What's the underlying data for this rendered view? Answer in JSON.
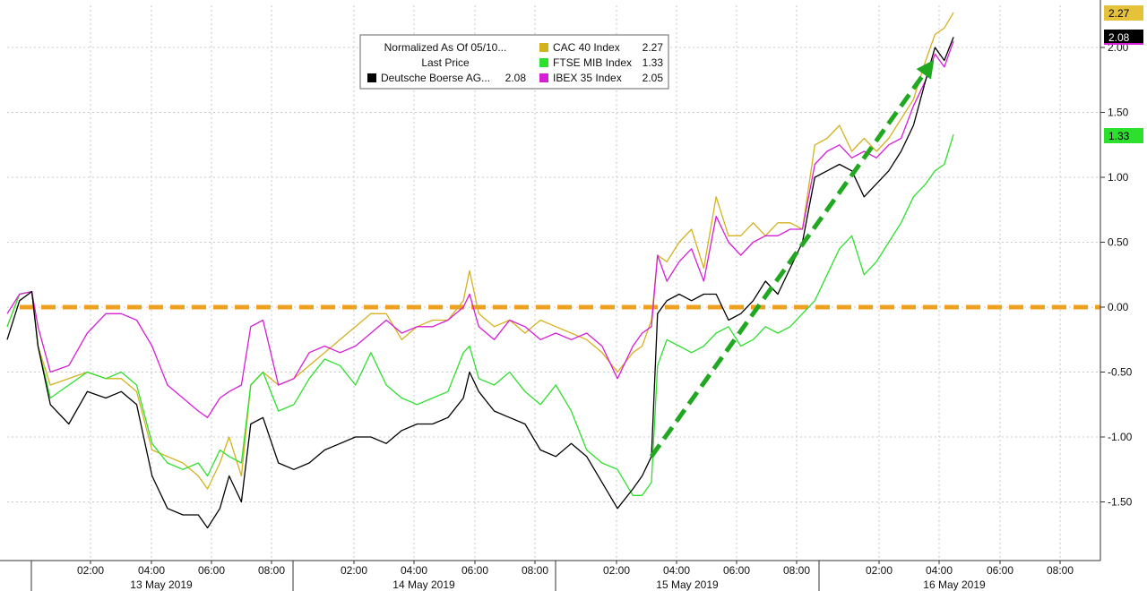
{
  "chart_data": {
    "type": "line",
    "legend": {
      "header_line1": "Normalized As Of 05/10...",
      "header_line2": "Last Price",
      "placement": "top-center"
    },
    "y_axis": {
      "ticks": [
        -1.5,
        -1.0,
        -0.5,
        0.0,
        0.5,
        1.0,
        1.5,
        2.0
      ],
      "tick_labels": [
        "-1.50",
        "-1.00",
        "-0.50",
        "0.00",
        "0.50",
        "1.00",
        "1.50",
        "2.00"
      ],
      "range": [
        -1.93,
        2.35
      ],
      "side": "right"
    },
    "x_axis": {
      "time_ticks": [
        "02:00",
        "04:00",
        "06:00",
        "08:00",
        "02:00",
        "04:00",
        "06:00",
        "08:00",
        "02:00",
        "04:00",
        "06:00",
        "08:00",
        "02:00",
        "04:00",
        "06:00",
        "08:00"
      ],
      "dates": [
        "13 May 2019",
        "14 May 2019",
        "15 May 2019",
        "16 May 2019"
      ]
    },
    "grid": true,
    "series": [
      {
        "name": "CAC 40 Index",
        "last": "2.27",
        "color": "#d4b21e",
        "points": [
          [
            0,
            -0.15
          ],
          [
            0.4,
            0.1
          ],
          [
            0.8,
            0.12
          ],
          [
            1.0,
            -0.3
          ],
          [
            1.4,
            -0.6
          ],
          [
            2.0,
            -0.55
          ],
          [
            2.6,
            -0.5
          ],
          [
            3.2,
            -0.55
          ],
          [
            3.7,
            -0.55
          ],
          [
            4.2,
            -0.65
          ],
          [
            4.7,
            -1.1
          ],
          [
            5.2,
            -1.15
          ],
          [
            5.7,
            -1.2
          ],
          [
            6.2,
            -1.3
          ],
          [
            6.5,
            -1.4
          ],
          [
            6.9,
            -1.2
          ],
          [
            7.2,
            -1.0
          ],
          [
            7.6,
            -1.3
          ],
          [
            7.9,
            -0.6
          ],
          [
            8.3,
            -0.5
          ],
          [
            8.8,
            -0.6
          ],
          [
            9.3,
            -0.55
          ],
          [
            9.8,
            -0.45
          ],
          [
            10.3,
            -0.35
          ],
          [
            10.8,
            -0.25
          ],
          [
            11.3,
            -0.15
          ],
          [
            11.8,
            -0.05
          ],
          [
            12.3,
            -0.05
          ],
          [
            12.8,
            -0.25
          ],
          [
            13.3,
            -0.15
          ],
          [
            13.8,
            -0.1
          ],
          [
            14.3,
            -0.1
          ],
          [
            14.8,
            0.05
          ],
          [
            15.0,
            0.28
          ],
          [
            15.3,
            -0.05
          ],
          [
            15.8,
            -0.15
          ],
          [
            16.3,
            -0.1
          ],
          [
            16.8,
            -0.2
          ],
          [
            17.3,
            -0.1
          ],
          [
            17.8,
            -0.15
          ],
          [
            18.3,
            -0.2
          ],
          [
            18.8,
            -0.25
          ],
          [
            19.3,
            -0.35
          ],
          [
            19.8,
            -0.5
          ],
          [
            20.3,
            -0.35
          ],
          [
            20.6,
            -0.3
          ],
          [
            20.9,
            -0.1
          ],
          [
            21.1,
            0.4
          ],
          [
            21.4,
            0.35
          ],
          [
            21.8,
            0.5
          ],
          [
            22.2,
            0.6
          ],
          [
            22.6,
            0.3
          ],
          [
            23.0,
            0.85
          ],
          [
            23.4,
            0.55
          ],
          [
            23.8,
            0.55
          ],
          [
            24.2,
            0.65
          ],
          [
            24.6,
            0.55
          ],
          [
            25.0,
            0.65
          ],
          [
            25.4,
            0.65
          ],
          [
            25.8,
            0.6
          ],
          [
            26.2,
            1.25
          ],
          [
            26.6,
            1.3
          ],
          [
            27.0,
            1.4
          ],
          [
            27.4,
            1.2
          ],
          [
            27.8,
            1.3
          ],
          [
            28.2,
            1.2
          ],
          [
            28.6,
            1.3
          ],
          [
            29.0,
            1.45
          ],
          [
            29.4,
            1.6
          ],
          [
            29.8,
            1.9
          ],
          [
            30.1,
            2.1
          ],
          [
            30.4,
            2.15
          ],
          [
            30.7,
            2.27
          ]
        ]
      },
      {
        "name": "FTSE MIB Index",
        "last": "1.33",
        "color": "#2ee02e",
        "points": [
          [
            0,
            -0.15
          ],
          [
            0.4,
            0.1
          ],
          [
            0.8,
            0.12
          ],
          [
            1.0,
            -0.3
          ],
          [
            1.4,
            -0.7
          ],
          [
            2.0,
            -0.6
          ],
          [
            2.6,
            -0.5
          ],
          [
            3.2,
            -0.55
          ],
          [
            3.7,
            -0.5
          ],
          [
            4.2,
            -0.6
          ],
          [
            4.7,
            -1.05
          ],
          [
            5.2,
            -1.2
          ],
          [
            5.7,
            -1.25
          ],
          [
            6.2,
            -1.2
          ],
          [
            6.5,
            -1.3
          ],
          [
            6.9,
            -1.1
          ],
          [
            7.2,
            -1.15
          ],
          [
            7.6,
            -1.2
          ],
          [
            7.9,
            -0.6
          ],
          [
            8.3,
            -0.5
          ],
          [
            8.8,
            -0.8
          ],
          [
            9.3,
            -0.75
          ],
          [
            9.8,
            -0.55
          ],
          [
            10.3,
            -0.4
          ],
          [
            10.8,
            -0.45
          ],
          [
            11.3,
            -0.6
          ],
          [
            11.8,
            -0.35
          ],
          [
            12.3,
            -0.6
          ],
          [
            12.8,
            -0.7
          ],
          [
            13.3,
            -0.75
          ],
          [
            13.8,
            -0.7
          ],
          [
            14.3,
            -0.65
          ],
          [
            14.8,
            -0.35
          ],
          [
            15.0,
            -0.3
          ],
          [
            15.3,
            -0.55
          ],
          [
            15.8,
            -0.6
          ],
          [
            16.3,
            -0.5
          ],
          [
            16.8,
            -0.65
          ],
          [
            17.3,
            -0.75
          ],
          [
            17.8,
            -0.6
          ],
          [
            18.3,
            -0.8
          ],
          [
            18.8,
            -1.1
          ],
          [
            19.3,
            -1.2
          ],
          [
            19.8,
            -1.25
          ],
          [
            20.3,
            -1.45
          ],
          [
            20.6,
            -1.45
          ],
          [
            20.9,
            -1.35
          ],
          [
            21.1,
            -0.45
          ],
          [
            21.4,
            -0.25
          ],
          [
            21.8,
            -0.3
          ],
          [
            22.2,
            -0.35
          ],
          [
            22.6,
            -0.3
          ],
          [
            23.0,
            -0.2
          ],
          [
            23.4,
            -0.15
          ],
          [
            23.8,
            -0.3
          ],
          [
            24.2,
            -0.25
          ],
          [
            24.6,
            -0.15
          ],
          [
            25.0,
            -0.2
          ],
          [
            25.4,
            -0.15
          ],
          [
            25.8,
            -0.05
          ],
          [
            26.2,
            0.05
          ],
          [
            26.6,
            0.25
          ],
          [
            27.0,
            0.45
          ],
          [
            27.4,
            0.55
          ],
          [
            27.8,
            0.25
          ],
          [
            28.2,
            0.35
          ],
          [
            28.6,
            0.5
          ],
          [
            29.0,
            0.65
          ],
          [
            29.4,
            0.85
          ],
          [
            29.8,
            0.95
          ],
          [
            30.1,
            1.05
          ],
          [
            30.4,
            1.1
          ],
          [
            30.7,
            1.33
          ]
        ]
      },
      {
        "name": "IBEX 35 Index",
        "last": "2.05",
        "color": "#d61ed6",
        "points": [
          [
            0,
            -0.05
          ],
          [
            0.4,
            0.1
          ],
          [
            0.8,
            0.12
          ],
          [
            1.0,
            -0.15
          ],
          [
            1.4,
            -0.5
          ],
          [
            2.0,
            -0.45
          ],
          [
            2.6,
            -0.2
          ],
          [
            3.2,
            -0.05
          ],
          [
            3.7,
            -0.05
          ],
          [
            4.2,
            -0.1
          ],
          [
            4.7,
            -0.3
          ],
          [
            5.2,
            -0.6
          ],
          [
            5.7,
            -0.7
          ],
          [
            6.2,
            -0.8
          ],
          [
            6.5,
            -0.85
          ],
          [
            6.9,
            -0.7
          ],
          [
            7.2,
            -0.65
          ],
          [
            7.6,
            -0.6
          ],
          [
            7.9,
            -0.15
          ],
          [
            8.3,
            -0.1
          ],
          [
            8.8,
            -0.6
          ],
          [
            9.3,
            -0.55
          ],
          [
            9.8,
            -0.35
          ],
          [
            10.3,
            -0.3
          ],
          [
            10.8,
            -0.35
          ],
          [
            11.3,
            -0.3
          ],
          [
            11.8,
            -0.2
          ],
          [
            12.3,
            -0.1
          ],
          [
            12.8,
            -0.2
          ],
          [
            13.3,
            -0.15
          ],
          [
            13.8,
            -0.15
          ],
          [
            14.3,
            -0.1
          ],
          [
            14.8,
            0.0
          ],
          [
            15.0,
            0.1
          ],
          [
            15.3,
            -0.15
          ],
          [
            15.8,
            -0.25
          ],
          [
            16.3,
            -0.1
          ],
          [
            16.8,
            -0.15
          ],
          [
            17.3,
            -0.25
          ],
          [
            17.8,
            -0.2
          ],
          [
            18.3,
            -0.25
          ],
          [
            18.8,
            -0.2
          ],
          [
            19.3,
            -0.3
          ],
          [
            19.8,
            -0.55
          ],
          [
            20.3,
            -0.3
          ],
          [
            20.6,
            -0.2
          ],
          [
            20.9,
            -0.15
          ],
          [
            21.1,
            0.4
          ],
          [
            21.4,
            0.2
          ],
          [
            21.8,
            0.35
          ],
          [
            22.2,
            0.45
          ],
          [
            22.6,
            0.2
          ],
          [
            23.0,
            0.7
          ],
          [
            23.4,
            0.5
          ],
          [
            23.8,
            0.4
          ],
          [
            24.2,
            0.5
          ],
          [
            24.6,
            0.55
          ],
          [
            25.0,
            0.55
          ],
          [
            25.4,
            0.6
          ],
          [
            25.8,
            0.6
          ],
          [
            26.2,
            1.1
          ],
          [
            26.6,
            1.2
          ],
          [
            27.0,
            1.25
          ],
          [
            27.4,
            1.15
          ],
          [
            27.8,
            1.2
          ],
          [
            28.2,
            1.15
          ],
          [
            28.6,
            1.25
          ],
          [
            29.0,
            1.3
          ],
          [
            29.4,
            1.55
          ],
          [
            29.8,
            1.75
          ],
          [
            30.1,
            1.95
          ],
          [
            30.4,
            1.85
          ],
          [
            30.7,
            2.05
          ]
        ]
      },
      {
        "name": "Deutsche Boerse AG...",
        "last": "2.08",
        "color": "#000000",
        "points": [
          [
            0,
            -0.25
          ],
          [
            0.4,
            0.05
          ],
          [
            0.8,
            0.12
          ],
          [
            1.0,
            -0.3
          ],
          [
            1.4,
            -0.75
          ],
          [
            2.0,
            -0.9
          ],
          [
            2.6,
            -0.65
          ],
          [
            3.2,
            -0.7
          ],
          [
            3.7,
            -0.65
          ],
          [
            4.2,
            -0.75
          ],
          [
            4.7,
            -1.3
          ],
          [
            5.2,
            -1.55
          ],
          [
            5.7,
            -1.6
          ],
          [
            6.2,
            -1.6
          ],
          [
            6.5,
            -1.7
          ],
          [
            6.9,
            -1.55
          ],
          [
            7.2,
            -1.3
          ],
          [
            7.6,
            -1.5
          ],
          [
            7.9,
            -0.9
          ],
          [
            8.3,
            -0.85
          ],
          [
            8.8,
            -1.2
          ],
          [
            9.3,
            -1.25
          ],
          [
            9.8,
            -1.2
          ],
          [
            10.3,
            -1.1
          ],
          [
            10.8,
            -1.05
          ],
          [
            11.3,
            -1.0
          ],
          [
            11.8,
            -1.0
          ],
          [
            12.3,
            -1.05
          ],
          [
            12.8,
            -0.95
          ],
          [
            13.3,
            -0.9
          ],
          [
            13.8,
            -0.9
          ],
          [
            14.3,
            -0.85
          ],
          [
            14.8,
            -0.7
          ],
          [
            15.0,
            -0.5
          ],
          [
            15.3,
            -0.65
          ],
          [
            15.8,
            -0.8
          ],
          [
            16.3,
            -0.85
          ],
          [
            16.8,
            -0.9
          ],
          [
            17.3,
            -1.1
          ],
          [
            17.8,
            -1.15
          ],
          [
            18.3,
            -1.05
          ],
          [
            18.8,
            -1.15
          ],
          [
            19.3,
            -1.35
          ],
          [
            19.8,
            -1.55
          ],
          [
            20.3,
            -1.4
          ],
          [
            20.6,
            -1.3
          ],
          [
            20.9,
            -1.15
          ],
          [
            21.1,
            -0.05
          ],
          [
            21.4,
            0.05
          ],
          [
            21.8,
            0.1
          ],
          [
            22.2,
            0.05
          ],
          [
            22.6,
            0.1
          ],
          [
            23.0,
            0.1
          ],
          [
            23.4,
            -0.1
          ],
          [
            23.8,
            -0.05
          ],
          [
            24.2,
            0.05
          ],
          [
            24.6,
            0.2
          ],
          [
            25.0,
            0.1
          ],
          [
            25.4,
            0.3
          ],
          [
            25.8,
            0.5
          ],
          [
            26.2,
            1.0
          ],
          [
            26.6,
            1.05
          ],
          [
            27.0,
            1.1
          ],
          [
            27.4,
            1.05
          ],
          [
            27.8,
            0.85
          ],
          [
            28.2,
            0.95
          ],
          [
            28.6,
            1.05
          ],
          [
            29.0,
            1.2
          ],
          [
            29.4,
            1.4
          ],
          [
            29.8,
            1.75
          ],
          [
            30.1,
            2.0
          ],
          [
            30.4,
            1.9
          ],
          [
            30.7,
            2.08
          ]
        ]
      }
    ],
    "annotations": {
      "zero_line": 0.0,
      "zero_line_color": "#f0a020",
      "trend_arrow": {
        "from": [
          20.9,
          -1.15
        ],
        "to": [
          29.9,
          1.85
        ],
        "color": "#21a821"
      }
    },
    "badges": [
      {
        "text": "2.27",
        "value": 2.27,
        "bg": "#e6c23a",
        "fg": "#000000"
      },
      {
        "text": "2.08",
        "value": 2.08,
        "bg": "#000000",
        "fg": "#ffffff"
      },
      {
        "text": "1.33",
        "value": 1.33,
        "bg": "#2ee02e",
        "fg": "#000000"
      }
    ]
  }
}
